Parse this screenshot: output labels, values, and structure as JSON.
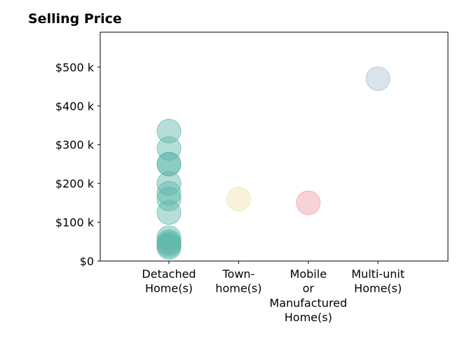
{
  "chart_data": {
    "type": "scatter",
    "title": "Selling Price",
    "xlabel": "",
    "ylabel": "",
    "categories": [
      [
        "Detached",
        "Home(s)"
      ],
      [
        "Town-",
        "home(s)"
      ],
      [
        "Mobile",
        "or",
        "Manufactured",
        "Home(s)"
      ],
      [
        "Multi-unit",
        "Home(s)"
      ]
    ],
    "ylim": [
      0,
      590000
    ],
    "yticks": [
      0,
      100000,
      200000,
      300000,
      400000,
      500000
    ],
    "ytick_labels": [
      "$0",
      "$100 k",
      "$200 k",
      "$300 k",
      "$400 k",
      "$500 k"
    ],
    "grid": false,
    "series": [
      {
        "category_index": 0,
        "color": "#5bb5a8",
        "values": [
          335000,
          290000,
          250000,
          250000,
          200000,
          175000,
          160000,
          125000,
          60000,
          50000,
          45000,
          40000,
          35000
        ]
      },
      {
        "category_index": 1,
        "color": "#f3dfae",
        "values": [
          160000
        ]
      },
      {
        "category_index": 2,
        "color": "#f19ca3",
        "values": [
          150000
        ]
      },
      {
        "category_index": 3,
        "color": "#a9c1d3",
        "values": [
          470000
        ]
      }
    ]
  }
}
